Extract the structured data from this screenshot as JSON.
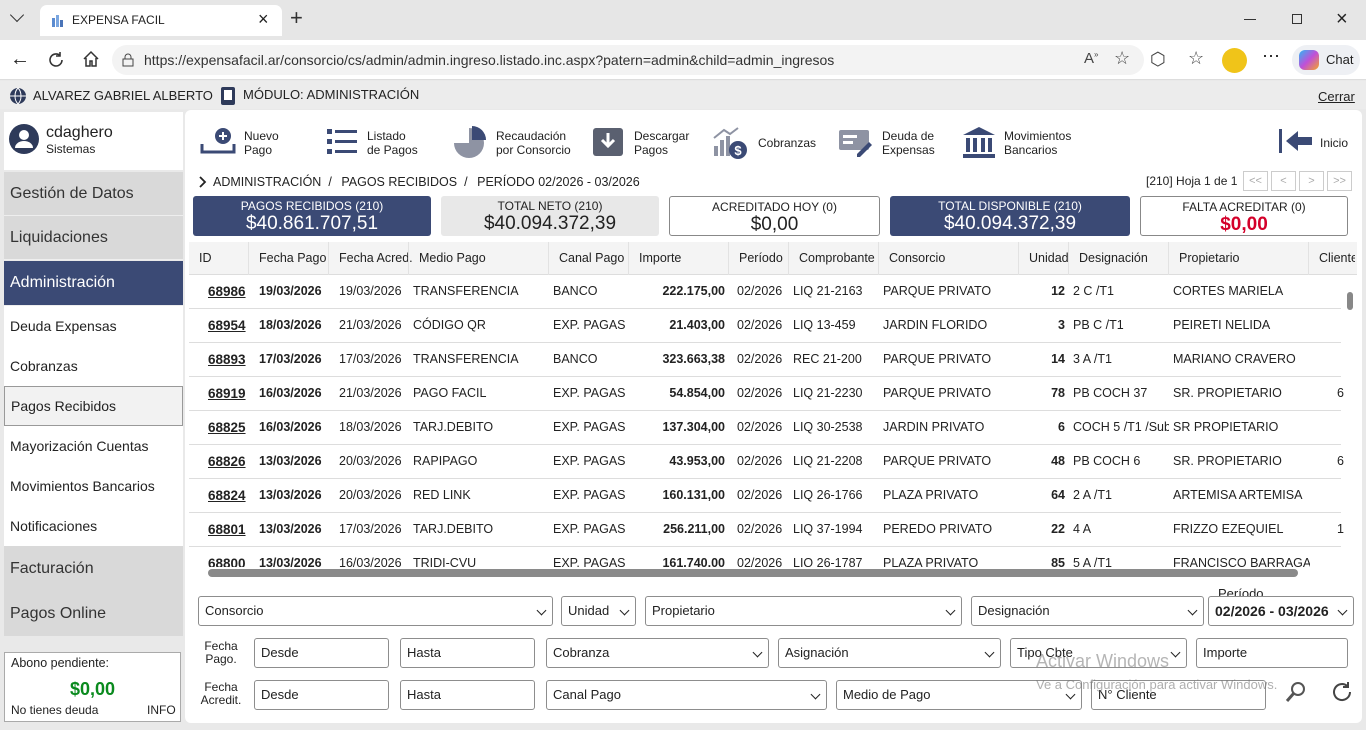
{
  "browser": {
    "tab_title": "EXPENSA FACIL",
    "url": "https://expensafacil.ar/consorcio/cs/admin/admin.ingreso.listado.inc.aspx?patern=admin&child=admin_ingresos",
    "chat": "Chat"
  },
  "topbar": {
    "user": "ALVAREZ GABRIEL ALBERTO",
    "module": "MÓDULO: ADMINISTRACIÓN",
    "logout": "Cerrar"
  },
  "sidebar": {
    "username": "cdaghero",
    "role": "Sistemas",
    "sections": [
      "Gestión de Datos",
      "Liquidaciones",
      "Administración"
    ],
    "submenu": [
      "Deuda Expensas",
      "Cobranzas",
      "Pagos Recibidos",
      "Mayorización Cuentas",
      "Movimientos Bancarios",
      "Notificaciones"
    ],
    "sections_after": [
      "Facturación",
      "Pagos Online"
    ],
    "abono": {
      "label": "Abono pendiente:",
      "amount": "$0,00",
      "status": "No tienes deuda",
      "info": "INFO"
    }
  },
  "toolbar": [
    {
      "lines": [
        "Nuevo",
        "Pago"
      ]
    },
    {
      "lines": [
        "Listado",
        "de Pagos"
      ]
    },
    {
      "lines": [
        "Recaudación",
        "por Consorcio"
      ]
    },
    {
      "lines": [
        "Descargar",
        "Pagos"
      ]
    },
    {
      "lines": [
        "Cobranzas"
      ]
    },
    {
      "lines": [
        "Deuda de",
        "Expensas"
      ]
    },
    {
      "lines": [
        "Movimientos",
        "Bancarios"
      ]
    },
    {
      "lines": [
        "Inicio"
      ]
    }
  ],
  "breadcrumb": [
    "ADMINISTRACIÓN",
    "PAGOS RECIBIDOS",
    "PERÍODO 02/2026 - 03/2026"
  ],
  "pagination": {
    "info": "[210] Hoja 1 de 1",
    "buttons": [
      "<<",
      "<",
      ">",
      ">>"
    ]
  },
  "summary": [
    {
      "label": "PAGOS RECIBIDOS (210)",
      "value": "$40.861.707,51"
    },
    {
      "label": "TOTAL NETO (210)",
      "value": "$40.094.372,39"
    },
    {
      "label": "ACREDITADO HOY (0)",
      "value": "$0,00"
    },
    {
      "label": "TOTAL DISPONIBLE (210)",
      "value": "$40.094.372,39"
    },
    {
      "label": "FALTA ACREDITAR (0)",
      "value": "$0,00"
    }
  ],
  "table": {
    "headers": [
      "ID",
      "Fecha Pago",
      "Fecha Acred.",
      "Medio Pago",
      "Canal Pago",
      "Importe",
      "Período",
      "Comprobante",
      "Consorcio",
      "Unidad",
      "Designación",
      "Propietario",
      "Cliente"
    ],
    "rows": [
      [
        "68986",
        "19/03/2026",
        "19/03/2026",
        "TRANSFERENCIA",
        "BANCO",
        "222.175,00",
        "02/2026",
        "LIQ 21-2163",
        "PARQUE PRIVATO",
        "12",
        "2 C /T1",
        "CORTES MARIELA",
        null
      ],
      [
        "68954",
        "18/03/2026",
        "21/03/2026",
        "CÓDIGO QR",
        "EXP. PAGAS",
        "21.403,00",
        "02/2026",
        "LIQ 13-459",
        "JARDIN FLORIDO",
        "3",
        "PB C /T1",
        "PEIRETI NELIDA",
        null
      ],
      [
        "68893",
        "17/03/2026",
        "17/03/2026",
        "TRANSFERENCIA",
        "BANCO",
        "323.663,38",
        "02/2026",
        "REC 21-200",
        "PARQUE PRIVATO",
        "14",
        "3 A /T1",
        "MARIANO CRAVERO",
        null
      ],
      [
        "68919",
        "16/03/2026",
        "21/03/2026",
        "PAGO FACIL",
        "EXP. PAGAS",
        "54.854,00",
        "02/2026",
        "LIQ 21-2230",
        "PARQUE PRIVATO",
        "78",
        "PB COCH 37",
        "SR. PROPIETARIO",
        "6"
      ],
      [
        "68825",
        "16/03/2026",
        "18/03/2026",
        "TARJ.DEBITO",
        "EXP. PAGAS",
        "137.304,00",
        "02/2026",
        "LIQ 30-2538",
        "JARDIN PRIVATO",
        "6",
        "COCH 5 /T1 /Sub",
        "SR PROPIETARIO",
        null
      ],
      [
        "68826",
        "13/03/2026",
        "20/03/2026",
        "RAPIPAGO",
        "EXP. PAGAS",
        "43.953,00",
        "02/2026",
        "LIQ 21-2208",
        "PARQUE PRIVATO",
        "48",
        "PB COCH 6",
        "SR. PROPIETARIO",
        "6"
      ],
      [
        "68824",
        "13/03/2026",
        "20/03/2026",
        "RED LINK",
        "EXP. PAGAS",
        "160.131,00",
        "02/2026",
        "LIQ 26-1766",
        "PLAZA PRIVATO",
        "64",
        "2 A /T1",
        "ARTEMISA ARTEMISA",
        null
      ],
      [
        "68801",
        "13/03/2026",
        "17/03/2026",
        "TARJ.DEBITO",
        "EXP. PAGAS",
        "256.211,00",
        "02/2026",
        "LIQ 37-1994",
        "PEREDO PRIVATO",
        "22",
        "4 A",
        "FRIZZO EZEQUIEL",
        "1"
      ],
      [
        "68800",
        "13/03/2026",
        "16/03/2026",
        "TRIDI-CVU",
        "EXP. PAGAS",
        "161.740,00",
        "02/2026",
        "LIQ 26-1787",
        "PLAZA PRIVATO",
        "85",
        "5 A /T1",
        "FRANCISCO BARRAGAN",
        null
      ]
    ]
  },
  "filters": {
    "row1": [
      "Consorcio",
      "Unidad",
      "Propietario",
      "Designación"
    ],
    "period_label": "Período",
    "period": "02/2026 - 03/2026",
    "pago_label": "Fecha Pago.",
    "pago": [
      "Desde",
      "Hasta",
      "Cobranza",
      "Asignación",
      "Tipo Cbte",
      "Importe"
    ],
    "acredit_label": "Fecha Acredit.",
    "acredit": [
      "Desde",
      "Hasta",
      "Canal Pago",
      "Medio de Pago",
      "N° Cliente"
    ]
  },
  "watermark": {
    "title": "Activar Windows",
    "subtitle": "Ve a Configuración para activar Windows."
  }
}
